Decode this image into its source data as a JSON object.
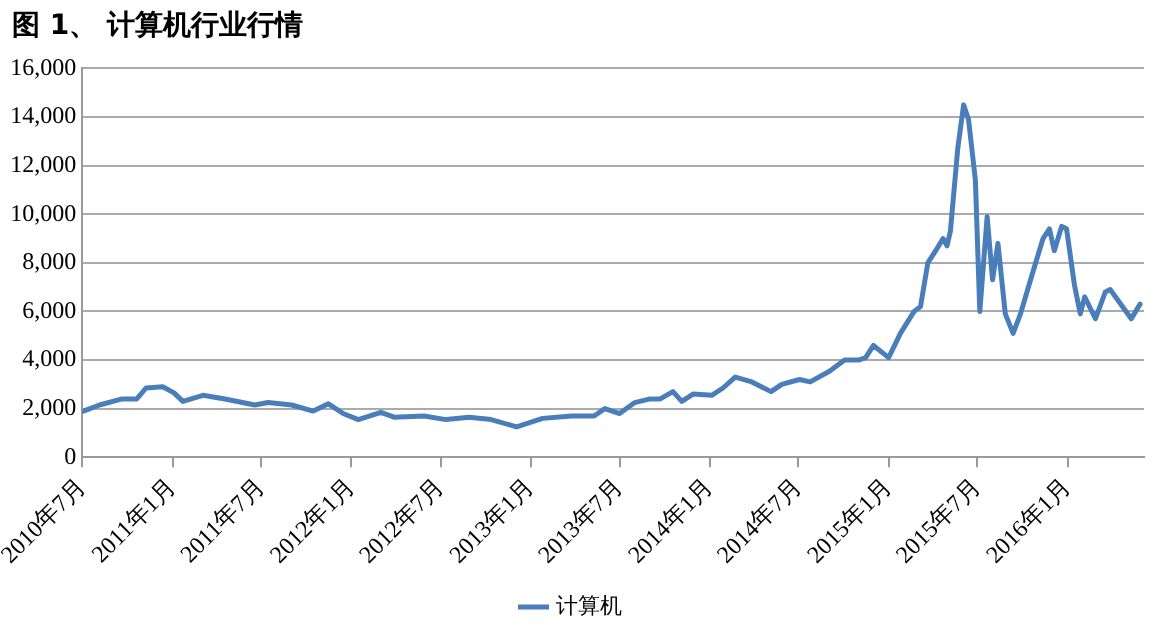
{
  "chart_data": {
    "type": "line",
    "title": "图 1、 计算机行业行情",
    "xlim": [
      "2010-07-01",
      "2016-06-05"
    ],
    "xticks": [
      {
        "value": "2010-07",
        "label": "2010年7月"
      },
      {
        "value": "2011-01",
        "label": "2011年1月"
      },
      {
        "value": "2011-07",
        "label": "2011年7月"
      },
      {
        "value": "2012-01",
        "label": "2012年1月"
      },
      {
        "value": "2012-07",
        "label": "2012年7月"
      },
      {
        "value": "2013-01",
        "label": "2013年1月"
      },
      {
        "value": "2013-07",
        "label": "2013年7月"
      },
      {
        "value": "2014-01",
        "label": "2014年1月"
      },
      {
        "value": "2014-07",
        "label": "2014年7月"
      },
      {
        "value": "2015-01",
        "label": "2015年1月"
      },
      {
        "value": "2015-07",
        "label": "2015年7月"
      },
      {
        "value": "2016-01",
        "label": "2016年1月"
      }
    ],
    "ylim": [
      0,
      16000
    ],
    "yticks": [
      0,
      {
        "value": 2000,
        "label": "2,000"
      },
      {
        "value": 4000,
        "label": "4,000"
      },
      {
        "value": 6000,
        "label": "6,000"
      },
      {
        "value": 8000,
        "label": "8,000"
      },
      {
        "value": 10000,
        "label": "10,000"
      },
      {
        "value": 12000,
        "label": "12,000"
      },
      {
        "value": 14000,
        "label": "14,000"
      },
      {
        "value": 16000,
        "label": "16,000"
      }
    ],
    "grid": "y",
    "legend": "bottom",
    "marker": "none",
    "line_style": "solid",
    "series": [
      {
        "name": "计算机",
        "color": "#4a7ebb",
        "x": [
          "2010-07-03",
          "2010-08-05",
          "2010-09-20",
          "2010-10-20",
          "2010-11-08",
          "2010-12-12",
          "2011-01-04",
          "2011-01-22",
          "2011-03-04",
          "2011-04-18",
          "2011-06-18",
          "2011-07-15",
          "2011-09-01",
          "2011-10-15",
          "2011-11-15",
          "2011-12-15",
          "2012-01-15",
          "2012-03-01",
          "2012-03-28",
          "2012-05-28",
          "2012-07-12",
          "2012-08-28",
          "2012-10-12",
          "2012-12-03",
          "2013-01-25",
          "2013-03-25",
          "2013-05-10",
          "2013-06-01",
          "2013-07-01",
          "2013-08-01",
          "2013-09-01",
          "2013-09-22",
          "2013-10-18",
          "2013-11-05",
          "2013-11-28",
          "2014-01-05",
          "2014-01-28",
          "2014-02-22",
          "2014-03-28",
          "2014-05-06",
          "2014-05-28",
          "2014-07-03",
          "2014-07-25",
          "2014-09-03",
          "2014-10-03",
          "2014-11-01",
          "2014-11-15",
          "2014-12-01",
          "2015-01-01",
          "2015-01-25",
          "2015-02-22",
          "2015-03-07",
          "2015-03-22",
          "2015-04-07",
          "2015-04-22",
          "2015-04-30",
          "2015-05-07",
          "2015-05-22",
          "2015-06-03",
          "2015-06-13",
          "2015-06-27",
          "2015-07-06",
          "2015-07-21",
          "2015-08-01",
          "2015-08-12",
          "2015-08-27",
          "2015-09-12",
          "2015-09-27",
          "2015-10-22",
          "2015-11-12",
          "2015-11-25",
          "2015-12-05",
          "2015-12-20",
          "2015-12-30",
          "2016-01-15",
          "2016-01-27",
          "2016-02-05",
          "2016-02-27",
          "2016-03-18",
          "2016-03-28",
          "2016-04-22",
          "2016-05-10",
          "2016-05-28"
        ],
        "values": [
          1900,
          2150,
          2400,
          2400,
          2850,
          2900,
          2650,
          2300,
          2550,
          2400,
          2150,
          2250,
          2150,
          1900,
          2200,
          1800,
          1550,
          1850,
          1650,
          1700,
          1550,
          1650,
          1550,
          1250,
          1600,
          1700,
          1700,
          2000,
          1800,
          2250,
          2400,
          2400,
          2700,
          2300,
          2600,
          2550,
          2850,
          3300,
          3100,
          2700,
          3000,
          3200,
          3100,
          3550,
          4000,
          4000,
          4100,
          4600,
          4100,
          5100,
          6000,
          6200,
          8000,
          8500,
          9000,
          8700,
          9300,
          12700,
          14500,
          13900,
          11400,
          6000,
          9900,
          7300,
          8800,
          5900,
          5100,
          5900,
          7600,
          9000,
          9400,
          8500,
          9500,
          9400,
          7100,
          5900,
          6600,
          5700,
          6800,
          6900,
          6200,
          5700,
          6300
        ]
      }
    ]
  }
}
